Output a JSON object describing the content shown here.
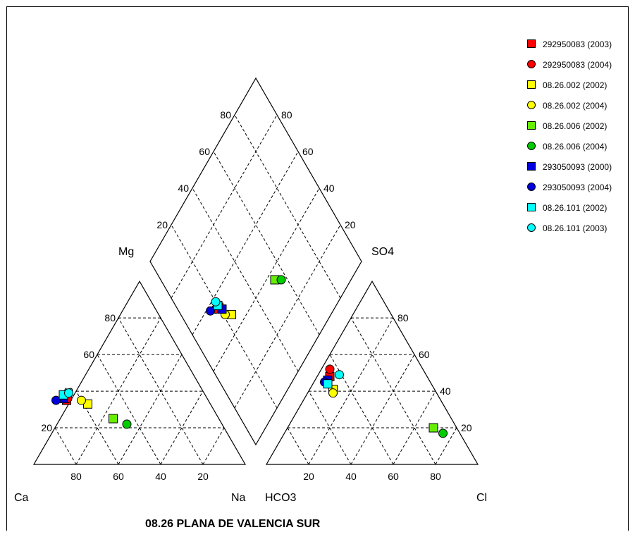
{
  "chart_data": {
    "type": "scatter",
    "subtype": "piper",
    "title": "08.26 PLANA DE VALENCIA SUR",
    "ticks": [
      "20",
      "40",
      "60",
      "80"
    ],
    "labels": {
      "mg": "Mg",
      "ca": "Ca",
      "na": "Na",
      "so4": "SO4",
      "hco3": "HCO3",
      "cl": "Cl"
    },
    "series": [
      {
        "name": "292950083 (2003)",
        "marker": "square",
        "color": "#ff0000",
        "cations": {
          "ca": 67,
          "mg": 35,
          "na": -2
        },
        "anions": {
          "hco3": 46,
          "so4": 48,
          "cl": 6
        },
        "diamond": {
          "a": 20,
          "b": 55
        }
      },
      {
        "name": "292950083 (2004)",
        "marker": "circle",
        "color": "#ff0000",
        "cations": {
          "ca": 66,
          "mg": 36,
          "na": -2
        },
        "anions": {
          "hco3": 44,
          "so4": 52,
          "cl": 4
        },
        "diamond": {
          "a": 18,
          "b": 56
        }
      },
      {
        "name": "08.26.002 (2002)",
        "marker": "square",
        "color": "#ffff00",
        "cations": {
          "ca": 58,
          "mg": 33,
          "na": 9
        },
        "anions": {
          "hco3": 48,
          "so4": 41,
          "cl": 11
        },
        "diamond": {
          "a": 24,
          "b": 47
        }
      },
      {
        "name": "08.26.002 (2004)",
        "marker": "circle",
        "color": "#ffff00",
        "cations": {
          "ca": 60,
          "mg": 35,
          "na": 5
        },
        "anions": {
          "hco3": 49,
          "so4": 39,
          "cl": 12
        },
        "diamond": {
          "a": 21,
          "b": 50
        }
      },
      {
        "name": "08.26.006 (2002)",
        "marker": "square",
        "color": "#66ee00",
        "cations": {
          "ca": 50,
          "mg": 25,
          "na": 25
        },
        "anions": {
          "hco3": 11,
          "so4": 20,
          "cl": 69
        },
        "diamond": {
          "a": 54,
          "b": 36
        }
      },
      {
        "name": "08.26.006 (2004)",
        "marker": "circle",
        "color": "#00cc00",
        "cations": {
          "ca": 45,
          "mg": 22,
          "na": 33
        },
        "anions": {
          "hco3": 8,
          "so4": 17,
          "cl": 75
        },
        "diamond": {
          "a": 57,
          "b": 33
        }
      },
      {
        "name": "293050093 (2000)",
        "marker": "square",
        "color": "#0000dd",
        "cations": {
          "ca": 68,
          "mg": 36,
          "na": -4
        },
        "anions": {
          "hco3": 48,
          "so4": 46,
          "cl": 6
        },
        "diamond": {
          "a": 21,
          "b": 53
        }
      },
      {
        "name": "293050093 (2004)",
        "marker": "circle",
        "color": "#0000dd",
        "cations": {
          "ca": 72,
          "mg": 35,
          "na": -7
        },
        "anions": {
          "hco3": 50,
          "so4": 45,
          "cl": 5
        },
        "diamond": {
          "a": 15,
          "b": 58
        }
      },
      {
        "name": "08.26.101 (2002)",
        "marker": "square",
        "color": "#00ffff",
        "cations": {
          "ca": 67,
          "mg": 38,
          "na": -5
        },
        "anions": {
          "hco3": 49,
          "so4": 44,
          "cl": 7
        },
        "diamond": {
          "a": 20,
          "b": 56
        }
      },
      {
        "name": "08.26.101 (2003)",
        "marker": "circle",
        "color": "#00ffff",
        "cations": {
          "ca": 64,
          "mg": 39,
          "na": -3
        },
        "anions": {
          "hco3": 41,
          "so4": 49,
          "cl": 10
        },
        "diamond": {
          "a": 20,
          "b": 58
        }
      }
    ]
  }
}
